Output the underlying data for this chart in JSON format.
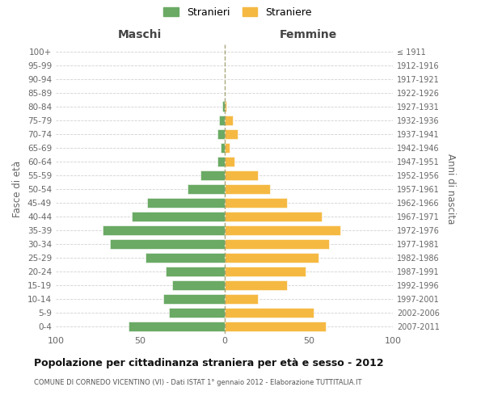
{
  "age_groups": [
    "100+",
    "95-99",
    "90-94",
    "85-89",
    "80-84",
    "75-79",
    "70-74",
    "65-69",
    "60-64",
    "55-59",
    "50-54",
    "45-49",
    "40-44",
    "35-39",
    "30-34",
    "25-29",
    "20-24",
    "15-19",
    "10-14",
    "5-9",
    "0-4"
  ],
  "birth_years": [
    "≤ 1911",
    "1912-1916",
    "1917-1921",
    "1922-1926",
    "1927-1931",
    "1932-1936",
    "1937-1941",
    "1942-1946",
    "1947-1951",
    "1952-1956",
    "1957-1961",
    "1962-1966",
    "1967-1971",
    "1972-1976",
    "1977-1981",
    "1982-1986",
    "1987-1991",
    "1992-1996",
    "1997-2001",
    "2002-2006",
    "2007-2011"
  ],
  "males": [
    0,
    0,
    0,
    0,
    1,
    3,
    4,
    2,
    4,
    14,
    22,
    46,
    55,
    72,
    68,
    47,
    35,
    31,
    36,
    33,
    57
  ],
  "females": [
    0,
    0,
    0,
    0,
    1,
    5,
    8,
    3,
    6,
    20,
    27,
    37,
    58,
    69,
    62,
    56,
    48,
    37,
    20,
    53,
    60
  ],
  "male_color": "#6aaa64",
  "female_color": "#f5b942",
  "title": "Popolazione per cittadinanza straniera per età e sesso - 2012",
  "subtitle": "COMUNE DI CORNEDO VICENTINO (VI) - Dati ISTAT 1° gennaio 2012 - Elaborazione TUTTITALIA.IT",
  "xlabel_left": "Maschi",
  "xlabel_right": "Femmine",
  "ylabel_left": "Fasce di età",
  "ylabel_right": "Anni di nascita",
  "legend_male": "Stranieri",
  "legend_female": "Straniere",
  "xlim": 100,
  "background_color": "#ffffff",
  "grid_color": "#cccccc"
}
